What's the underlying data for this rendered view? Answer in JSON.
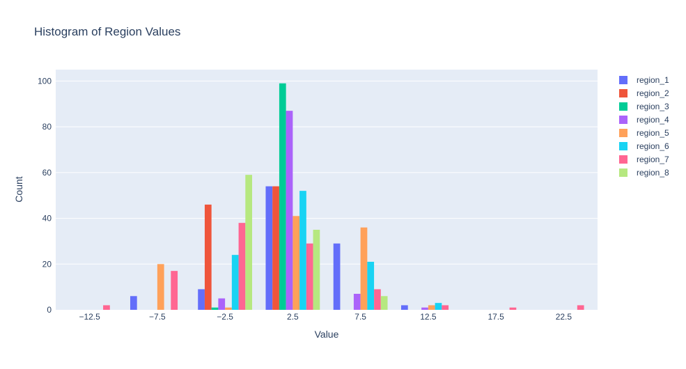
{
  "chart_data": {
    "type": "bar",
    "title": "Histogram of Region Values",
    "xlabel": "Value",
    "ylabel": "Count",
    "x_range": [
      -15,
      25
    ],
    "y_range": [
      0,
      105
    ],
    "x_ticks": [
      -12.5,
      -7.5,
      -2.5,
      2.5,
      7.5,
      12.5,
      17.5,
      22.5
    ],
    "x_tick_labels": [
      "−12.5",
      "−7.5",
      "−2.5",
      "2.5",
      "7.5",
      "12.5",
      "17.5",
      "22.5"
    ],
    "y_ticks": [
      0,
      20,
      40,
      60,
      80,
      100
    ],
    "y_tick_labels": [
      "0",
      "20",
      "40",
      "60",
      "80",
      "100"
    ],
    "bin_starts": [
      -15,
      -10,
      -5,
      0,
      5,
      10,
      15,
      20
    ],
    "bin_width": 5,
    "grid": true,
    "legend_position": "top-right",
    "series": [
      {
        "name": "region_1",
        "color": "#636efa",
        "values": [
          0,
          6,
          9,
          54,
          29,
          2,
          0,
          0
        ]
      },
      {
        "name": "region_2",
        "color": "#ef553b",
        "values": [
          0,
          0,
          46,
          54,
          0,
          0,
          0,
          0
        ]
      },
      {
        "name": "region_3",
        "color": "#00cc96",
        "values": [
          0,
          0,
          1,
          99,
          0,
          0,
          0,
          0
        ]
      },
      {
        "name": "region_4",
        "color": "#ab63fa",
        "values": [
          0,
          0,
          5,
          87,
          7,
          1,
          0,
          0
        ]
      },
      {
        "name": "region_5",
        "color": "#ffa15a",
        "values": [
          0,
          20,
          1,
          41,
          36,
          2,
          0,
          0
        ]
      },
      {
        "name": "region_6",
        "color": "#19d3f3",
        "values": [
          0,
          0,
          24,
          52,
          21,
          3,
          0,
          0
        ]
      },
      {
        "name": "region_7",
        "color": "#ff6692",
        "values": [
          2,
          17,
          38,
          29,
          9,
          2,
          1,
          2
        ]
      },
      {
        "name": "region_8",
        "color": "#b6e880",
        "values": [
          0,
          0,
          59,
          35,
          6,
          0,
          0,
          0
        ]
      }
    ]
  }
}
